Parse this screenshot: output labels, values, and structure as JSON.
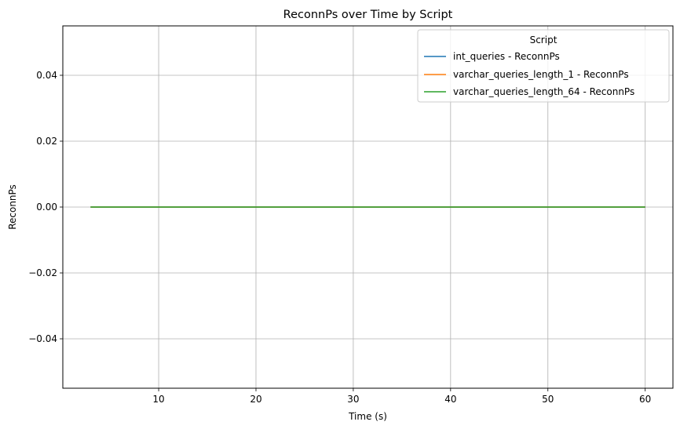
{
  "chart_data": {
    "type": "line",
    "title": "ReconnPs over Time by Script",
    "xlabel": "Time (s)",
    "ylabel": "ReconnPs",
    "xlim": [
      0.15,
      62.85
    ],
    "ylim": [
      -0.055,
      0.055
    ],
    "x_ticks": [
      10,
      20,
      30,
      40,
      50,
      60
    ],
    "x_tick_labels": [
      "10",
      "20",
      "30",
      "40",
      "50",
      "60"
    ],
    "y_ticks": [
      -0.04,
      -0.02,
      0.0,
      0.02,
      0.04
    ],
    "y_tick_labels": [
      "−0.04",
      "−0.02",
      "0.00",
      "0.02",
      "0.04"
    ],
    "grid": true,
    "legend": {
      "title": "Script",
      "placement": "top-right"
    },
    "series": [
      {
        "name": "int_queries - ReconnPs",
        "color": "#1f77b4",
        "x": [
          3,
          60
        ],
        "y": [
          0,
          0
        ]
      },
      {
        "name": "varchar_queries_length_1 - ReconnPs",
        "color": "#ff7f0e",
        "x": [
          3,
          60
        ],
        "y": [
          0,
          0
        ]
      },
      {
        "name": "varchar_queries_length_64 - ReconnPs",
        "color": "#2ca02c",
        "x": [
          3,
          60
        ],
        "y": [
          0,
          0
        ]
      }
    ]
  }
}
